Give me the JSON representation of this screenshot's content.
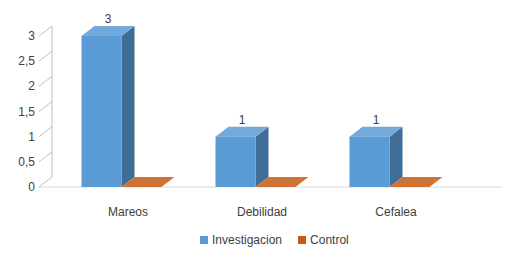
{
  "chart_data": {
    "type": "bar",
    "categories": [
      "Mareos",
      "Debilidad",
      "Cefalea"
    ],
    "series": [
      {
        "name": "Investigacion",
        "color": "#5b9bd5",
        "values": [
          3,
          1,
          1
        ],
        "data_labels": true
      },
      {
        "name": "Control",
        "color": "#c55a11",
        "values": [
          0,
          0,
          0
        ]
      }
    ],
    "ylim": [
      0,
      3
    ],
    "yticks": [
      0,
      {
        "value": 0.5,
        "label": "0,5"
      },
      1,
      {
        "value": 1.5,
        "label": "1,5"
      },
      2,
      {
        "value": 2.5,
        "label": "2,5"
      },
      3
    ],
    "grid": false,
    "legend": "bottom"
  }
}
